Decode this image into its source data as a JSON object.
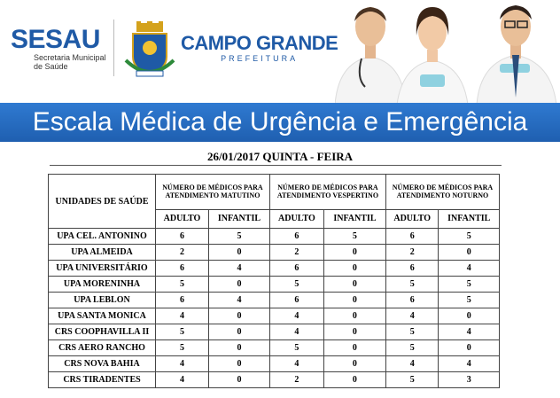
{
  "header": {
    "sesau_logo": "SESAU",
    "sesau_sub_line1": "Secretaria Municipal",
    "sesau_sub_line2": "de Saúde",
    "city_title": "CAMPO GRANDE",
    "city_sub": "PREFEITURA"
  },
  "banner": {
    "title": "Escala Médica de Urgência e Emergência"
  },
  "date": "26/01/2017 QUINTA - FEIRA",
  "table": {
    "units_header": "UNIDADES DE SAÚDE",
    "groups": [
      "NÚMERO DE MÉDICOS PARA ATENDIMENTO MATUTINO",
      "NÚMERO DE MÉDICOS PARA ATENDIMENTO VESPERTINO",
      "NÚMERO DE MÉDICOS PARA ATENDIMENTO NOTURNO"
    ],
    "sub_headers": [
      "ADULTO",
      "INFANTIL",
      "ADULTO",
      "INFANTIL",
      "ADULTO",
      "INFANTIL"
    ],
    "rows": [
      {
        "name": "UPA CEL. ANTONINO",
        "values": [
          "6",
          "5",
          "6",
          "5",
          "6",
          "5"
        ]
      },
      {
        "name": "UPA ALMEIDA",
        "values": [
          "2",
          "0",
          "2",
          "0",
          "2",
          "0"
        ]
      },
      {
        "name": "UPA UNIVERSITÁRIO",
        "values": [
          "6",
          "4",
          "6",
          "0",
          "6",
          "4"
        ]
      },
      {
        "name": "UPA MORENINHA",
        "values": [
          "5",
          "0",
          "5",
          "0",
          "5",
          "5"
        ]
      },
      {
        "name": "UPA LEBLON",
        "values": [
          "6",
          "4",
          "6",
          "0",
          "6",
          "5"
        ]
      },
      {
        "name": "UPA SANTA MONICA",
        "values": [
          "4",
          "0",
          "4",
          "0",
          "4",
          "0"
        ]
      },
      {
        "name": "CRS COOPHAVILLA II",
        "values": [
          "5",
          "0",
          "4",
          "0",
          "5",
          "4"
        ]
      },
      {
        "name": "CRS AERO RANCHO",
        "values": [
          "5",
          "0",
          "5",
          "0",
          "5",
          "0"
        ]
      },
      {
        "name": "CRS NOVA BAHIA",
        "values": [
          "4",
          "0",
          "4",
          "0",
          "4",
          "4"
        ]
      },
      {
        "name": "CRS TIRADENTES",
        "values": [
          "4",
          "0",
          "2",
          "0",
          "5",
          "3"
        ]
      }
    ]
  },
  "colors": {
    "brand_blue": "#1f5aa6",
    "banner_blue": "#2f7ad1"
  }
}
